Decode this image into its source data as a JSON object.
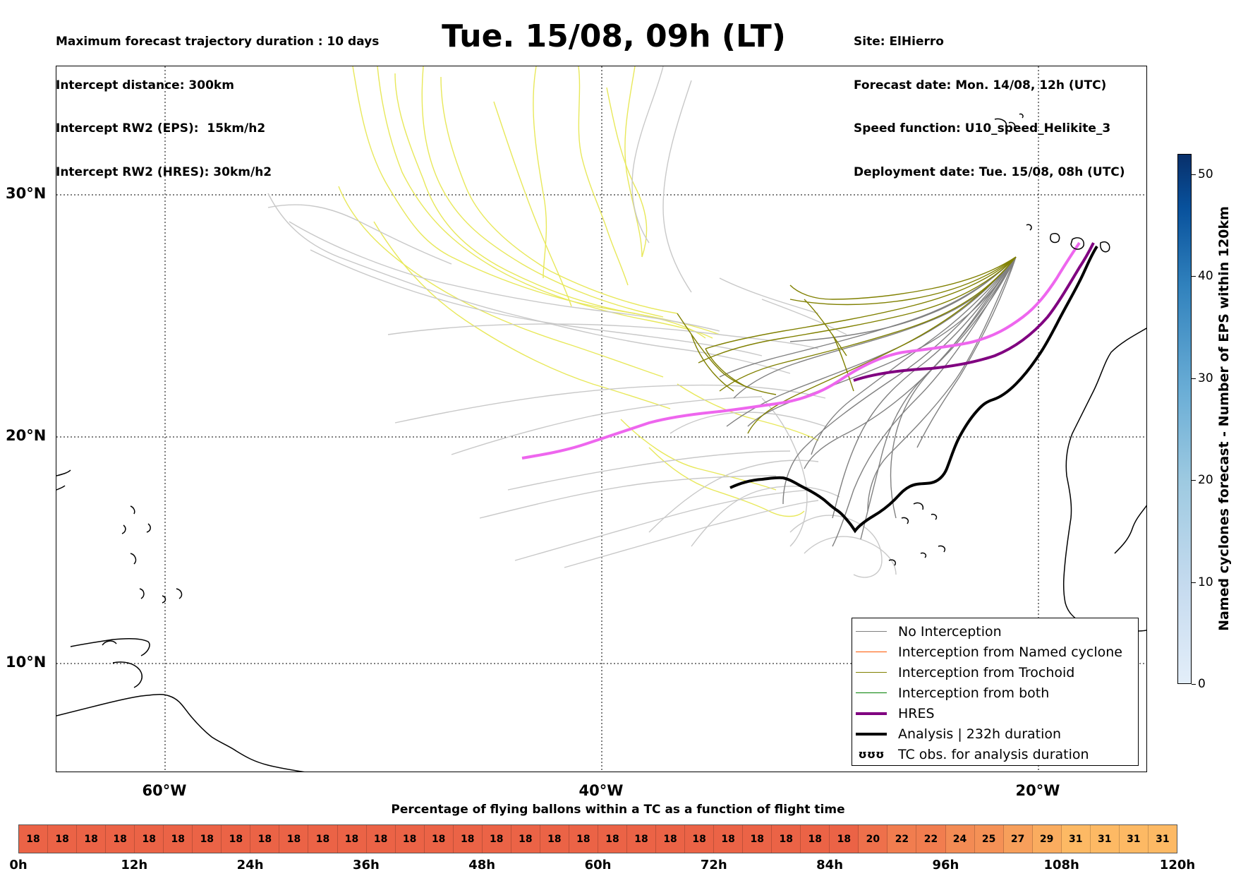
{
  "header_left": [
    "Maximum forecast trajectory duration : 10 days",
    "Intercept distance: 300km",
    "Intercept RW2 (EPS):  15km/h2",
    "Intercept RW2 (HRES): 30km/h2"
  ],
  "title": "Tue. 15/08, 09h (LT)",
  "header_right": [
    "Site: ElHierro",
    "Forecast date: Mon. 14/08, 12h (UTC)",
    "Speed function: U10_speed_Helikite_3",
    "Deployment date: Tue. 15/08, 08h (UTC)"
  ],
  "map": {
    "lat_labels": [
      "30°N",
      "20°N",
      "10°N"
    ],
    "lon_labels": [
      "60°W",
      "40°W",
      "20°W"
    ],
    "lat_values": [
      30,
      20,
      10
    ],
    "lon_values": [
      -60,
      -40,
      -20
    ]
  },
  "legend": {
    "items": [
      {
        "label": "No Interception",
        "color": "#808080",
        "style": "thin"
      },
      {
        "label": "Interception from Named cyclone",
        "color": "#ff5500",
        "style": "thin"
      },
      {
        "label": "Interception from Trochoid",
        "color": "#808000",
        "style": "thin"
      },
      {
        "label": "Interception from both",
        "color": "#008000",
        "style": "thin"
      },
      {
        "label": "HRES",
        "color": "#800080",
        "style": "thick"
      },
      {
        "label": "Analysis | 232h duration",
        "color": "#000000",
        "style": "thick"
      },
      {
        "label": "TC obs. for analysis duration",
        "color": "#000000",
        "style": "symbol",
        "symbol": "ʊʊʊ"
      }
    ]
  },
  "colorbar": {
    "title": "Named cyclones forecast - Number of EPS within 120km",
    "ticks": [
      "0",
      "10",
      "20",
      "30",
      "40",
      "50"
    ],
    "tick_values": [
      0,
      10,
      20,
      30,
      40,
      50
    ],
    "max": 52,
    "colors": [
      "#e3eef9",
      "#08306b"
    ]
  },
  "strip": {
    "title": "Percentage of flying ballons within a TC as a function of flight time",
    "values": [
      18,
      18,
      18,
      18,
      18,
      18,
      18,
      18,
      18,
      18,
      18,
      18,
      18,
      18,
      18,
      18,
      18,
      18,
      18,
      18,
      18,
      18,
      18,
      18,
      18,
      18,
      18,
      18,
      18,
      20,
      22,
      22,
      24,
      25,
      27,
      29,
      31,
      31,
      31,
      31
    ],
    "time_labels": [
      "0h",
      "12h",
      "24h",
      "36h",
      "48h",
      "60h",
      "72h",
      "84h",
      "96h",
      "108h",
      "120h"
    ]
  },
  "colors": {
    "no_interception": "#808080",
    "trochoid": "#808000",
    "eps_yellow": "#e8e85a",
    "eps_grey": "#c8c8c8",
    "hres": "#800080",
    "hres_light": "#ee66ee",
    "analysis": "#000000"
  }
}
